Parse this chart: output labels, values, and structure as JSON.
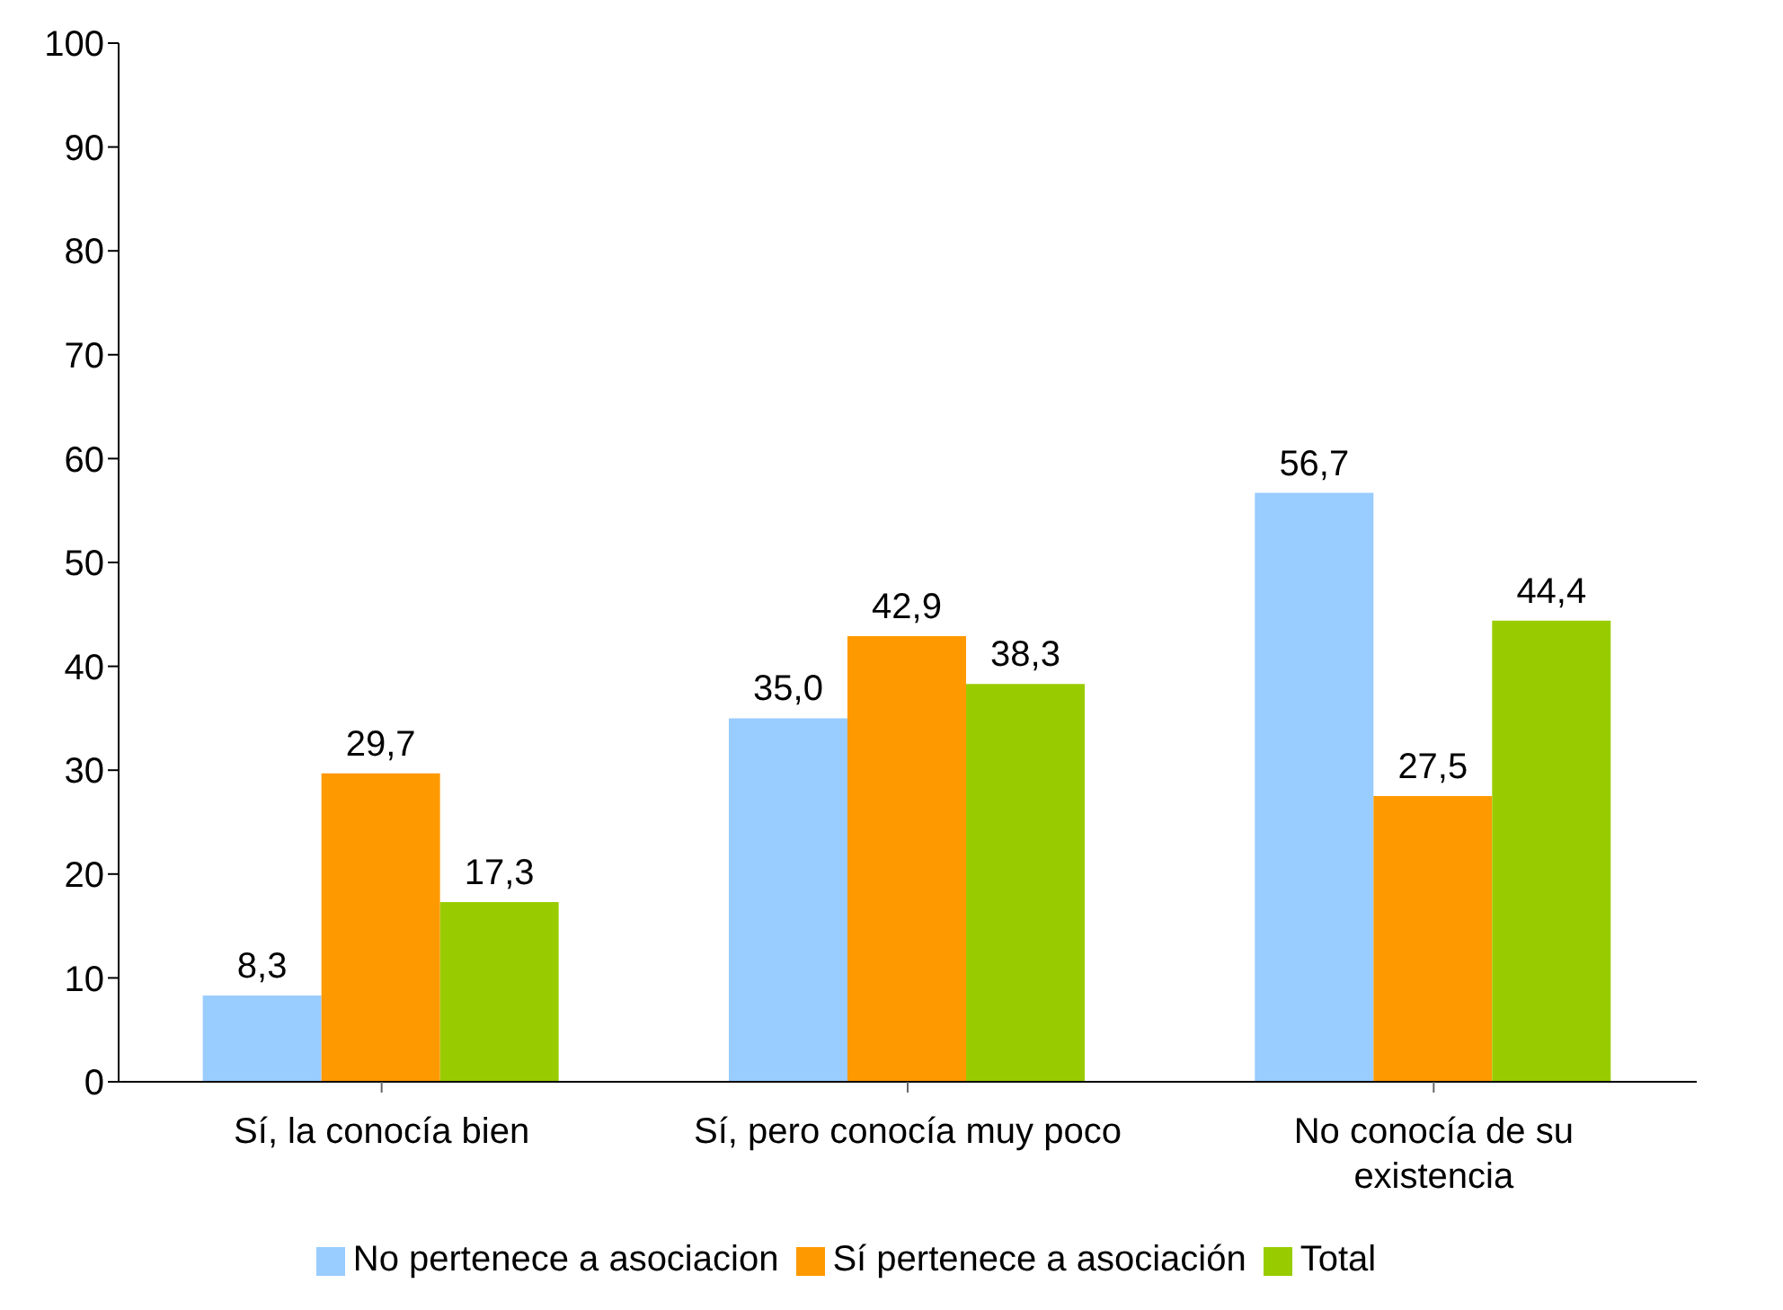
{
  "chart_data": {
    "type": "bar",
    "categories": [
      "Sí, la conocía bien",
      "Sí, pero conocía muy poco",
      "No conocía de su existencia"
    ],
    "series": [
      {
        "name": "No pertenece a asociacion",
        "color": "#99ccff",
        "values": [
          8.3,
          35.0,
          56.7
        ],
        "value_labels": [
          "8,3",
          "35,0",
          "56,7"
        ]
      },
      {
        "name": "Sí pertenece a asociación",
        "color": "#ff9900",
        "values": [
          29.7,
          42.9,
          27.5
        ],
        "value_labels": [
          "29,7",
          "42,9",
          "27,5"
        ]
      },
      {
        "name": "Total",
        "color": "#99cc00",
        "values": [
          17.3,
          38.3,
          44.4
        ],
        "value_labels": [
          "17,3",
          "38,3",
          "44,4"
        ]
      }
    ],
    "ylim": [
      0,
      100
    ],
    "yticks": [
      0,
      10,
      20,
      30,
      40,
      50,
      60,
      70,
      80,
      90,
      100
    ],
    "grid": false,
    "legend": "bottom"
  }
}
